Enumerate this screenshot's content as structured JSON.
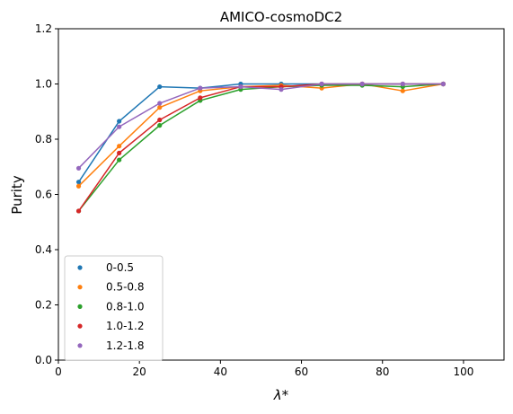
{
  "chart_data": {
    "type": "line",
    "title": "AMICO-cosmoDC2",
    "xlabel": "λ*",
    "ylabel": "Purity",
    "xlim": [
      0,
      110
    ],
    "ylim": [
      0,
      1.2
    ],
    "xticks": [
      0,
      20,
      40,
      60,
      80,
      100
    ],
    "yticks": [
      0.0,
      0.2,
      0.4,
      0.6,
      0.8,
      1.0,
      1.2
    ],
    "x": [
      5,
      15,
      25,
      35,
      45,
      55,
      65,
      75,
      85,
      95
    ],
    "grid": false,
    "legend_position": "lower-left",
    "series": [
      {
        "name": "0-0.5",
        "color": "#1f77b4",
        "values": [
          0.645,
          0.865,
          0.99,
          0.985,
          1.0,
          1.0,
          1.0,
          1.0,
          1.0,
          1.0
        ]
      },
      {
        "name": "0.5-0.8",
        "color": "#ff7f0e",
        "values": [
          0.63,
          0.775,
          0.915,
          0.975,
          0.99,
          0.995,
          0.985,
          1.0,
          0.975,
          1.0
        ]
      },
      {
        "name": "0.8-1.0",
        "color": "#2ca02c",
        "values": [
          0.54,
          0.725,
          0.85,
          0.94,
          0.98,
          0.99,
          0.995,
          0.995,
          0.99,
          1.0
        ]
      },
      {
        "name": "1.0-1.2",
        "color": "#d62728",
        "values": [
          0.54,
          0.75,
          0.87,
          0.95,
          0.99,
          0.99,
          1.0,
          1.0,
          1.0,
          1.0
        ]
      },
      {
        "name": "1.2-1.8",
        "color": "#9467bd",
        "values": [
          0.695,
          0.845,
          0.93,
          0.985,
          0.99,
          0.98,
          1.0,
          1.0,
          1.0,
          1.0
        ]
      }
    ]
  }
}
